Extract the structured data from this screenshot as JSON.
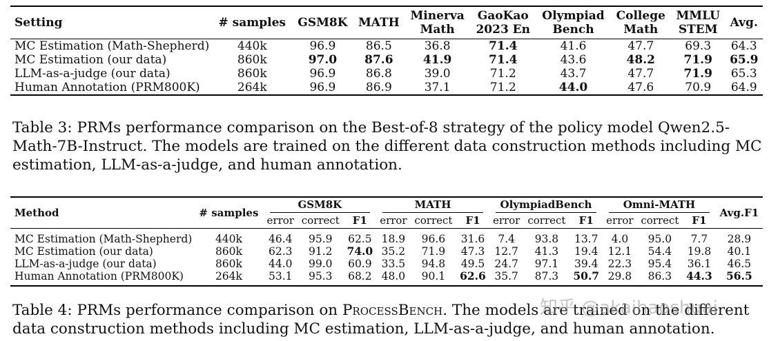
{
  "table3": {
    "headers": [
      "Setting",
      "# samples",
      "GSM8K",
      "MATH",
      "Minerva\nMath",
      "GaoKao\n2023 En",
      "Olympiad\nBench",
      "College\nMath",
      "MMLU\nSTEM",
      "Avg."
    ],
    "rows": [
      {
        "cells": [
          "MC Estimation (Math-Shepherd)",
          "440k",
          "96.9",
          "86.5",
          "36.8",
          "71.4",
          "41.6",
          "47.7",
          "69.3",
          "64.3"
        ],
        "bold": [
          false,
          false,
          false,
          false,
          false,
          true,
          false,
          false,
          false,
          false
        ]
      },
      {
        "cells": [
          "MC Estimation (our data)",
          "860k",
          "97.0",
          "87.6",
          "41.9",
          "71.4",
          "43.6",
          "48.2",
          "71.9",
          "65.9"
        ],
        "bold": [
          false,
          false,
          true,
          true,
          true,
          true,
          false,
          true,
          true,
          true
        ]
      },
      {
        "cells": [
          "LLM-as-a-judge (our data)",
          "860k",
          "96.9",
          "86.8",
          "39.0",
          "71.2",
          "43.7",
          "47.7",
          "71.9",
          "65.3"
        ],
        "bold": [
          false,
          false,
          false,
          false,
          false,
          false,
          false,
          false,
          true,
          false
        ]
      },
      {
        "cells": [
          "Human Annotation (PRM800K)",
          "264k",
          "96.9",
          "86.9",
          "37.1",
          "71.2",
          "44.0",
          "47.6",
          "70.9",
          "64.9"
        ],
        "bold": [
          false,
          false,
          false,
          false,
          false,
          false,
          true,
          false,
          false,
          false
        ]
      }
    ]
  },
  "caption3": "Table 3: PRMs performance comparison on the Best-of-8 strategy of the policy model Qwen2.5-Math-7B-Instruct. The models are trained on the different data construction methods including MC estimation, LLM-as-a-judge, and human annotation.",
  "table4": {
    "col_method": "Method",
    "col_samples": "# samples",
    "groups": [
      "GSM8K",
      "MATH",
      "OlympiadBench",
      "Omni-MATH"
    ],
    "col_avg": "Avg.F1",
    "subheaders": [
      "error",
      "correct",
      "F1"
    ],
    "rows": [
      {
        "cells": [
          "MC Estimation (Math-Shepherd)",
          "440k",
          "46.4",
          "95.9",
          "62.5",
          "18.9",
          "96.6",
          "31.6",
          "7.4",
          "93.8",
          "13.7",
          "4.0",
          "95.0",
          "7.7",
          "28.9"
        ],
        "bold": [
          false,
          false,
          false,
          false,
          false,
          false,
          false,
          false,
          false,
          false,
          false,
          false,
          false,
          false,
          false
        ]
      },
      {
        "cells": [
          "MC Estimation (our data)",
          "860k",
          "62.3",
          "91.2",
          "74.0",
          "35.2",
          "71.9",
          "47.3",
          "12.7",
          "41.3",
          "19.4",
          "12.1",
          "54.4",
          "19.8",
          "40.1"
        ],
        "bold": [
          false,
          false,
          false,
          false,
          true,
          false,
          false,
          false,
          false,
          false,
          false,
          false,
          false,
          false,
          false
        ]
      },
      {
        "cells": [
          "LLM-as-a-judge (our data)",
          "860k",
          "44.0",
          "99.0",
          "60.9",
          "33.5",
          "94.8",
          "49.5",
          "24.7",
          "97.1",
          "39.4",
          "22.3",
          "95.4",
          "36.1",
          "46.5"
        ],
        "bold": [
          false,
          false,
          false,
          false,
          false,
          false,
          false,
          false,
          false,
          false,
          false,
          false,
          false,
          false,
          false
        ]
      },
      {
        "cells": [
          "Human Annotation (PRM800K)",
          "264k",
          "53.1",
          "95.3",
          "68.2",
          "48.0",
          "90.1",
          "62.6",
          "35.7",
          "87.3",
          "50.7",
          "29.8",
          "86.3",
          "44.3",
          "56.5"
        ],
        "bold": [
          false,
          false,
          false,
          false,
          false,
          false,
          false,
          true,
          false,
          false,
          true,
          false,
          false,
          true,
          true
        ]
      }
    ]
  },
  "caption4": {
    "prefix": "Table 4: PRMs performance comparison on ",
    "smallcaps": "ProcessBench",
    "suffix": ". The models are trained on the different data construction methods including MC estimation, LLM-as-a-judge, and human annotation."
  },
  "watermark": "知乎 @akaihaoshuai"
}
